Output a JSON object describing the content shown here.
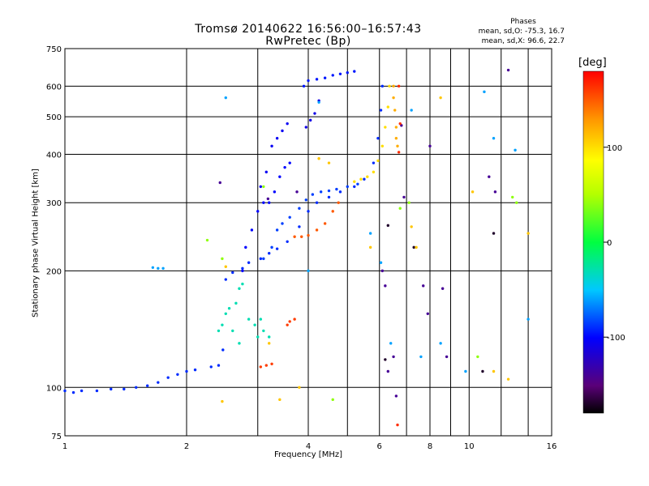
{
  "chart_data": {
    "type": "scatter",
    "title": "Tromsø 20140622 16:56:00–16:57:43",
    "subtitle": "RwPretec (Bp)",
    "xlabel": "Frequency [MHz]",
    "ylabel": "Stationary phase Virtual Height [km]",
    "x_scale": "log",
    "y_scale": "log",
    "xlim": [
      1,
      16
    ],
    "ylim": [
      75,
      750
    ],
    "x_ticks": [
      1,
      2,
      4,
      6,
      8,
      10,
      16
    ],
    "x_minor_ticks": [
      3,
      5,
      7,
      9,
      12,
      14
    ],
    "y_ticks": [
      75,
      100,
      200,
      300,
      400,
      500,
      600,
      750
    ],
    "grid": true,
    "legend": {
      "title": "Phases",
      "lines": [
        "mean, sd,O:  -75.3, 16.7",
        "mean, sd,X:  96.6, 22.7"
      ]
    },
    "colorbar": {
      "unit": "[deg]",
      "range": [
        -180,
        180
      ],
      "ticks": [
        100,
        0,
        -100
      ],
      "placement": "right"
    },
    "series": [
      {
        "color_phase": -90,
        "points": [
          [
            1.0,
            98
          ],
          [
            1.05,
            97
          ],
          [
            1.1,
            98
          ],
          [
            1.2,
            98
          ],
          [
            1.3,
            99
          ],
          [
            1.4,
            99
          ],
          [
            1.5,
            100
          ],
          [
            1.6,
            101
          ],
          [
            1.7,
            103
          ],
          [
            1.8,
            106
          ],
          [
            1.9,
            108
          ],
          [
            2.0,
            110
          ],
          [
            2.1,
            111
          ],
          [
            2.3,
            113
          ],
          [
            2.4,
            114
          ],
          [
            2.46,
            125
          ],
          [
            2.5,
            190
          ],
          [
            2.6,
            198
          ],
          [
            2.75,
            203
          ],
          [
            2.85,
            210
          ],
          [
            3.05,
            215
          ],
          [
            3.2,
            222
          ],
          [
            3.35,
            228
          ],
          [
            3.55,
            238
          ],
          [
            3.8,
            260
          ],
          [
            4.0,
            285
          ],
          [
            4.2,
            300
          ],
          [
            4.5,
            310
          ],
          [
            4.8,
            320
          ],
          [
            5.2,
            330
          ],
          [
            5.5,
            345
          ],
          [
            5.8,
            380
          ],
          [
            5.95,
            440
          ],
          [
            6.05,
            520
          ],
          [
            6.1,
            600
          ]
        ]
      },
      {
        "color_phase": -85,
        "points": [
          [
            3.1,
            215
          ],
          [
            3.25,
            230
          ],
          [
            3.35,
            255
          ],
          [
            3.45,
            265
          ],
          [
            3.6,
            275
          ],
          [
            3.8,
            290
          ],
          [
            3.95,
            305
          ],
          [
            4.1,
            315
          ],
          [
            4.3,
            320
          ],
          [
            4.5,
            322
          ],
          [
            4.7,
            325
          ],
          [
            5.0,
            330
          ],
          [
            5.3,
            335
          ]
        ]
      },
      {
        "color_phase": -105,
        "points": [
          [
            3.05,
            330
          ],
          [
            3.15,
            360
          ],
          [
            3.25,
            420
          ],
          [
            3.35,
            440
          ],
          [
            3.45,
            460
          ],
          [
            3.55,
            480
          ]
        ]
      },
      {
        "color_phase": -100,
        "points": [
          [
            3.2,
            300
          ],
          [
            3.3,
            320
          ],
          [
            3.4,
            350
          ],
          [
            3.5,
            370
          ],
          [
            3.6,
            380
          ]
        ]
      },
      {
        "color_phase": -100,
        "points": [
          [
            2.75,
            200
          ],
          [
            2.8,
            230
          ],
          [
            2.9,
            255
          ],
          [
            3.0,
            285
          ],
          [
            3.1,
            300
          ]
        ]
      },
      {
        "color_phase": -95,
        "points": [
          [
            3.9,
            600
          ],
          [
            4.0,
            620
          ],
          [
            4.2,
            625
          ],
          [
            4.4,
            630
          ],
          [
            4.6,
            640
          ],
          [
            4.8,
            645
          ],
          [
            5.0,
            650
          ],
          [
            5.2,
            655
          ]
        ]
      },
      {
        "color_phase": -110,
        "points": [
          [
            3.95,
            470
          ],
          [
            4.05,
            490
          ],
          [
            4.15,
            510
          ],
          [
            4.25,
            550
          ]
        ]
      },
      {
        "color_phase": 150,
        "points": [
          [
            3.7,
            245
          ],
          [
            3.85,
            245
          ],
          [
            4.0,
            247
          ],
          [
            4.2,
            255
          ],
          [
            4.4,
            265
          ],
          [
            4.6,
            285
          ],
          [
            4.75,
            300
          ]
        ]
      },
      {
        "color_phase": 100,
        "points": [
          [
            5.2,
            340
          ],
          [
            5.4,
            345
          ],
          [
            5.6,
            350
          ],
          [
            5.8,
            360
          ],
          [
            5.95,
            385
          ],
          [
            6.1,
            420
          ],
          [
            6.2,
            470
          ],
          [
            6.3,
            530
          ],
          [
            6.35,
            600
          ]
        ]
      },
      {
        "color_phase": -30,
        "points": [
          [
            2.65,
            165
          ],
          [
            2.7,
            180
          ],
          [
            2.75,
            185
          ],
          [
            2.85,
            150
          ],
          [
            2.95,
            145
          ],
          [
            3.0,
            135
          ],
          [
            3.1,
            140
          ],
          [
            3.2,
            135
          ],
          [
            2.6,
            140
          ],
          [
            2.7,
            130
          ],
          [
            2.5,
            155
          ],
          [
            2.45,
            145
          ],
          [
            2.4,
            140
          ],
          [
            2.55,
            160
          ],
          [
            3.05,
            150
          ]
        ]
      },
      {
        "color_phase": 160,
        "points": [
          [
            3.05,
            113
          ],
          [
            3.15,
            114
          ],
          [
            3.25,
            115
          ],
          [
            3.55,
            145
          ],
          [
            3.6,
            148
          ],
          [
            3.7,
            150
          ]
        ]
      },
      {
        "color_phase": -60,
        "points": [
          [
            1.65,
            204
          ],
          [
            1.7,
            203
          ],
          [
            1.75,
            203
          ]
        ]
      },
      {
        "color_phase": 120,
        "points": [
          [
            6.5,
            600
          ],
          [
            6.5,
            560
          ],
          [
            6.55,
            520
          ],
          [
            6.6,
            470
          ],
          [
            6.6,
            440
          ],
          [
            6.65,
            420
          ]
        ]
      },
      {
        "color_phase": -140,
        "points": [
          [
            2.42,
            338
          ],
          [
            3.18,
            307
          ],
          [
            3.75,
            320
          ],
          [
            6.1,
            200
          ],
          [
            6.2,
            183
          ],
          [
            6.3,
            110
          ],
          [
            6.5,
            120
          ],
          [
            6.6,
            95
          ],
          [
            7.7,
            183
          ],
          [
            7.9,
            155
          ],
          [
            8.0,
            420
          ],
          [
            8.6,
            180
          ],
          [
            8.8,
            120
          ],
          [
            11.2,
            350
          ],
          [
            11.6,
            320
          ],
          [
            12.5,
            660
          ],
          [
            6.8,
            475
          ],
          [
            6.9,
            310
          ]
        ]
      },
      {
        "color_phase": -170,
        "points": [
          [
            6.2,
            118
          ],
          [
            6.3,
            262
          ],
          [
            7.3,
            230
          ],
          [
            10.8,
            110
          ],
          [
            11.5,
            250
          ]
        ]
      },
      {
        "color_phase": 110,
        "points": [
          [
            2.5,
            205
          ],
          [
            2.45,
            92
          ],
          [
            3.2,
            130
          ],
          [
            3.4,
            93
          ],
          [
            3.8,
            100
          ],
          [
            4.25,
            390
          ],
          [
            4.5,
            380
          ],
          [
            5.7,
            230
          ],
          [
            7.2,
            260
          ],
          [
            7.4,
            230
          ],
          [
            8.5,
            560
          ],
          [
            11.5,
            110
          ],
          [
            12.5,
            105
          ],
          [
            14,
            250
          ],
          [
            10.2,
            320
          ]
        ]
      },
      {
        "color_phase": 40,
        "points": [
          [
            2.45,
            215
          ],
          [
            2.25,
            240
          ],
          [
            3.1,
            330
          ],
          [
            4.6,
            93
          ],
          [
            6.75,
            290
          ],
          [
            7.1,
            300
          ],
          [
            10.5,
            120
          ],
          [
            12.8,
            310
          ],
          [
            13.1,
            300
          ]
        ]
      },
      {
        "color_phase": -60,
        "points": [
          [
            2.5,
            560
          ],
          [
            4.0,
            200
          ],
          [
            4.25,
            545
          ],
          [
            5.7,
            250
          ],
          [
            6.05,
            210
          ],
          [
            7.2,
            520
          ],
          [
            8.5,
            130
          ],
          [
            10.9,
            580
          ],
          [
            11.5,
            440
          ],
          [
            13,
            410
          ],
          [
            14,
            150
          ],
          [
            9.8,
            110
          ],
          [
            7.6,
            120
          ],
          [
            6.4,
            130
          ]
        ]
      },
      {
        "color_phase": 165,
        "points": [
          [
            6.65,
            80
          ],
          [
            6.7,
            405
          ],
          [
            6.75,
            480
          ],
          [
            6.7,
            600
          ]
        ]
      }
    ]
  }
}
